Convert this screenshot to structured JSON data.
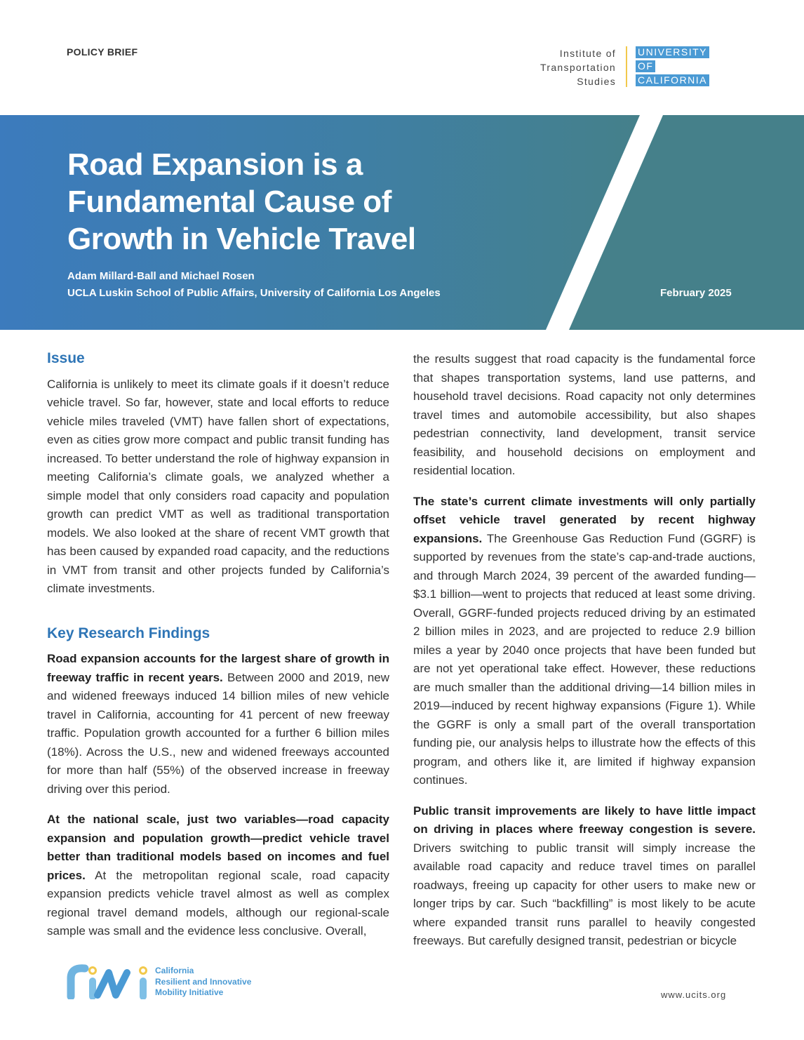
{
  "header": {
    "kicker": "POLICY BRIEF",
    "its_lines": [
      "Institute of",
      "Transportation",
      "Studies"
    ],
    "uc_lines": [
      "UNIVERSITY",
      "OF",
      "CALIFORNIA"
    ]
  },
  "banner": {
    "title_lines": [
      "Road Expansion is a",
      "Fundamental Cause of",
      "Growth in Vehicle Travel"
    ],
    "authors": "Adam Millard-Ball and Michael Rosen",
    "affiliation": "UCLA Luskin School of Public Affairs, University of California Los Angeles",
    "date": "February 2025"
  },
  "issue": {
    "heading": "Issue",
    "text": "California is unlikely to meet its climate goals if it doesn’t reduce vehicle travel. So far, however, state and local efforts to reduce vehicle miles traveled (VMT) have fallen short of expectations, even as cities grow more compact and public transit funding has increased. To better understand the role of highway expansion in meeting California’s climate goals, we analyzed whether a simple model that only considers road capacity and population growth can predict VMT as well as traditional transportation models. We also looked at the share of recent VMT growth that has been caused by expanded road capacity, and the reductions in VMT from transit and other projects funded by California’s climate investments."
  },
  "findings": {
    "heading": "Key Research Findings",
    "paragraphs": [
      {
        "lead": "Road expansion accounts for the largest share of growth in freeway traffic in recent years.",
        "text": " Between 2000 and 2019, new and widened freeways induced 14 billion miles of new vehicle travel in California, accounting for 41 percent of new freeway traffic. Population growth accounted for a further 6 billion miles (18%). Across the U.S., new and widened freeways accounted for more than half (55%) of the observed increase in freeway driving over this period."
      },
      {
        "lead": "At the national scale, just two variables—road capacity expansion and population growth—predict vehicle travel better than traditional models based on incomes and fuel prices.",
        "text": " At the metropolitan regional scale, road capacity expansion predicts vehicle travel almost as well as complex regional travel demand models, although our regional-scale sample was small and the evidence less conclusive. Overall,"
      }
    ]
  },
  "right": {
    "continuation": "the results suggest that road capacity is the fundamental force that shapes transportation systems, land use patterns, and household travel decisions. Road capacity not only determines travel times and automobile accessibility, but also shapes pedestrian connectivity, land development, transit service feasibility, and household decisions on employment and residential location.",
    "paragraphs": [
      {
        "lead": "The state’s current climate investments will only partially offset vehicle travel generated by recent highway expansions.",
        "text": " The Greenhouse Gas Reduction Fund (GGRF) is supported by revenues from the state’s cap-and-trade auctions, and through March 2024, 39 percent of the awarded funding—$3.1 billion—went to projects that reduced at least some driving. Overall, GGRF-funded projects reduced driving by an estimated 2 billion miles in 2023, and are projected to reduce 2.9 billion miles a year by 2040 once projects that have been funded but are not yet operational take effect. However, these reductions are much smaller than the additional driving—14 billion miles in 2019—induced by recent highway expansions (Figure 1). While the GGRF is only a small part of the overall transportation funding pie, our analysis helps to illustrate how the effects of this program, and others like it, are limited if highway expansion continues."
      },
      {
        "lead": "Public transit improvements are likely to have little impact on driving in places where freeway congestion is severe.",
        "text": " Drivers switching to public transit will simply increase the available road capacity and reduce travel times on parallel roadways, freeing up capacity for other users to make new or longer trips by car. Such “backfilling” is most likely to be acute where expanded transit runs parallel to heavily congested freeways. But carefully designed transit, pedestrian or bicycle"
      }
    ]
  },
  "footer": {
    "rmi_logo": "rmi",
    "rmi_lines": [
      "California",
      "Resilient and Innovative",
      "Mobility Initiative"
    ],
    "url": "www.ucits.org"
  },
  "colors": {
    "accent": "#2e75b6",
    "banner_blue": "#3c7bbd",
    "banner_teal": "#45808a",
    "logo_blue": "#4a9ad4",
    "logo_yellow": "#f2c94c"
  }
}
